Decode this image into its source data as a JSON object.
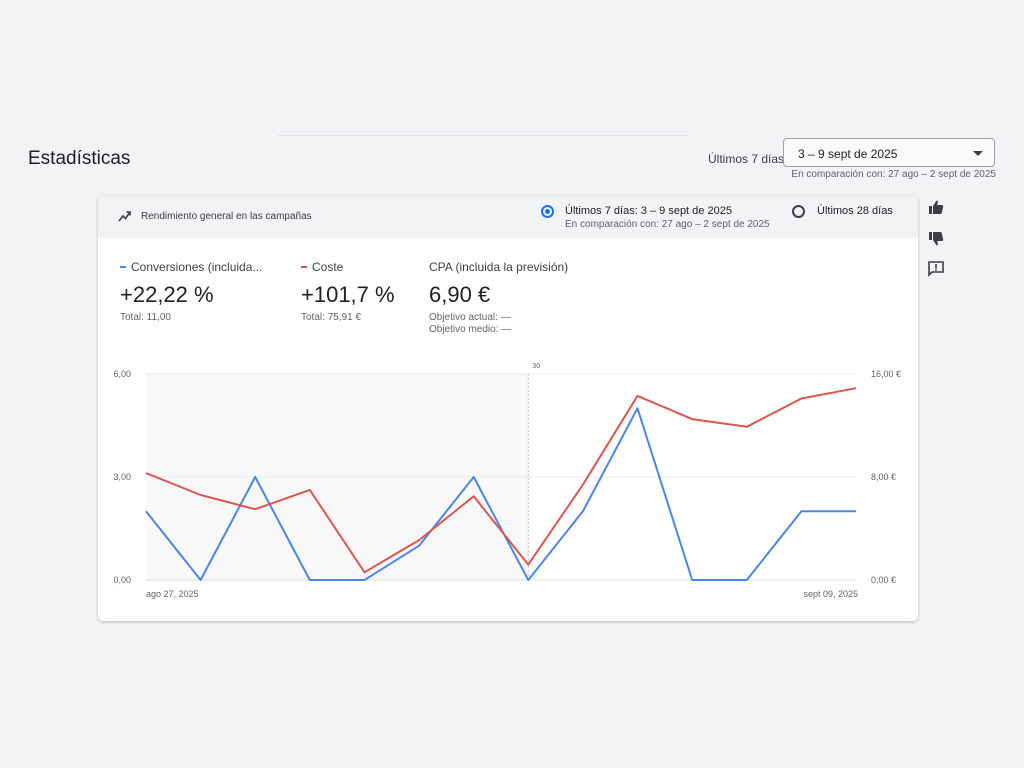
{
  "header": {
    "title": "Estadísticas",
    "range_label": "Últimos 7 días",
    "date_range_value": "3 – 9 sept de 2025",
    "comparison": "En comparación con: 27 ago – 2 sept de 2025"
  },
  "card": {
    "title": "Rendimiento general en las campañas",
    "title_icon": "trending-up-icon",
    "options": [
      {
        "label": "Últimos 7 días: 3 – 9 sept de 2025",
        "sub": "En comparación con: 27 ago – 2 sept de 2025",
        "selected": true
      },
      {
        "label": "Últimos 28 días",
        "selected": false
      }
    ]
  },
  "metrics": [
    {
      "name": "Conversiones (incluida...",
      "value": "+22,22 %",
      "total": "Total: 11,00",
      "color": "#4a86e8"
    },
    {
      "name": "Coste",
      "value": "+101,7 %",
      "total": "Total: 75,91 €",
      "color": "#d9574f"
    },
    {
      "name": "CPA (incluida la previsión)",
      "value": "6,90 €",
      "objective_current": "Objetivo actual: —",
      "objective_avg": "Objetivo medio: —"
    }
  ],
  "chart_data": {
    "type": "line",
    "x_labels_shown": [
      "ago 27, 2025",
      "sept 09, 2025"
    ],
    "marker_label": "30",
    "y_left": {
      "ticks": [
        "6,00",
        "3,00",
        "0,00"
      ],
      "range": [
        0,
        6
      ]
    },
    "y_right": {
      "ticks": [
        "16,00 €",
        "8,00 €",
        "0,00 €"
      ],
      "range": [
        0,
        16
      ]
    },
    "series": [
      {
        "name": "Conversiones (incluida...",
        "axis": "left",
        "color": "#4a86e8",
        "values": [
          2,
          0,
          3,
          0,
          0,
          1,
          3,
          0,
          2,
          5,
          0,
          0,
          2,
          2
        ]
      },
      {
        "name": "Coste",
        "axis": "right",
        "color": "#d9574f",
        "values": [
          8.3,
          6.6,
          5.5,
          7.0,
          0.6,
          3.1,
          6.5,
          1.2,
          7.4,
          14.3,
          12.5,
          11.9,
          14.1,
          14.9
        ]
      }
    ],
    "shaded_range": [
      0,
      7
    ],
    "marker_index": 7
  },
  "side": {
    "icons": [
      "thumb-up-icon",
      "thumb-down-icon",
      "feedback-icon"
    ]
  }
}
